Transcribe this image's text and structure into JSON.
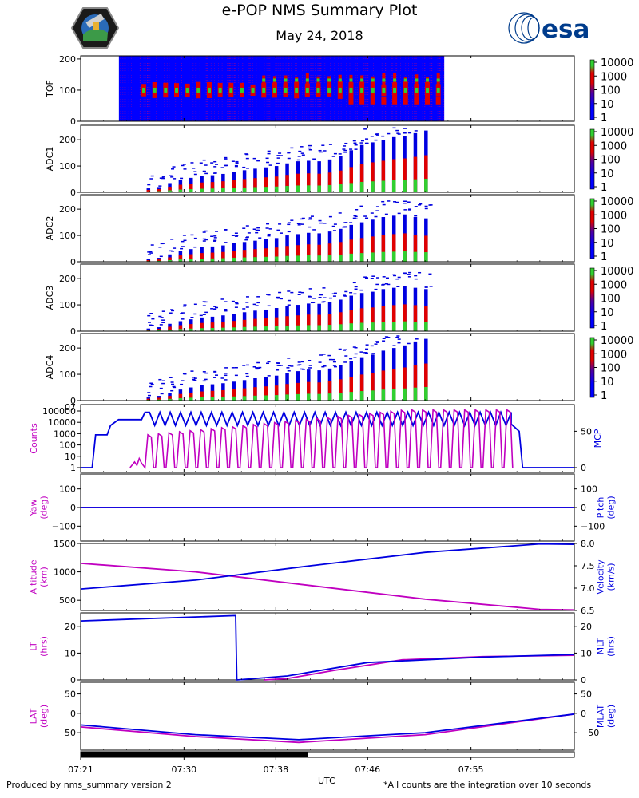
{
  "header": {
    "title": "e-POP NMS Summary Plot",
    "date": "May 24, 2018",
    "esa_logo_text": "esa"
  },
  "footer": {
    "left": "Produced by nms_summary version 2",
    "right": "*All counts are the integration over 10 seconds",
    "xlabel": "UTC"
  },
  "colors": {
    "magenta": "#c000c0",
    "blue": "#0000e0",
    "spec_bg": "#0000ff",
    "spec_red": "#e00000",
    "spec_green": "#30d030",
    "esa_blue": "#003c8c"
  },
  "icons": {
    "left_logo": "epop-satellite-badge-icon",
    "right_logo": "esa-logo-icon"
  },
  "chart_data": [
    {
      "type": "heatmap",
      "name": "tof",
      "ylabel": "TOF",
      "ylim": [
        0,
        210
      ],
      "yticks": [
        0,
        100,
        200
      ],
      "colorbar": {
        "scale": "log",
        "ticks": [
          "10000",
          "1000",
          "100",
          "10",
          "1"
        ]
      },
      "data_start": "07:24:20",
      "data_end": "07:52:40",
      "notes": "Saturated background with bright peaks near TOF 100 and 130-140"
    },
    {
      "type": "heatmap",
      "name": "adc1",
      "ylabel": "ADC1",
      "ylim": [
        0,
        255
      ],
      "yticks": [
        0,
        100,
        200
      ],
      "colorbar": {
        "scale": "log",
        "ticks": [
          "10000",
          "1000",
          "100",
          "10",
          "1"
        ]
      },
      "burst_peaks": [
        15,
        20,
        35,
        48,
        55,
        62,
        65,
        70,
        78,
        84,
        90,
        95,
        100,
        110,
        118,
        120,
        118,
        125,
        138,
        160,
        180,
        190,
        200,
        210,
        215,
        225,
        235
      ]
    },
    {
      "type": "heatmap",
      "name": "adc2",
      "ylabel": "ADC2",
      "ylim": [
        0,
        255
      ],
      "yticks": [
        0,
        100,
        200
      ],
      "colorbar": {
        "scale": "log",
        "ticks": [
          "10000",
          "1000",
          "100",
          "10",
          "1"
        ]
      },
      "burst_peaks": [
        10,
        15,
        28,
        40,
        48,
        55,
        58,
        62,
        70,
        75,
        80,
        85,
        90,
        100,
        105,
        110,
        108,
        115,
        125,
        140,
        150,
        160,
        170,
        175,
        180,
        170,
        165
      ]
    },
    {
      "type": "heatmap",
      "name": "adc3",
      "ylabel": "ADC3",
      "ylim": [
        0,
        255
      ],
      "yticks": [
        0,
        100,
        200
      ],
      "colorbar": {
        "scale": "log",
        "ticks": [
          "10000",
          "1000",
          "100",
          "10",
          "1"
        ]
      },
      "burst_peaks": [
        10,
        15,
        28,
        38,
        45,
        52,
        55,
        60,
        65,
        72,
        78,
        82,
        88,
        95,
        100,
        105,
        104,
        110,
        120,
        135,
        145,
        150,
        160,
        165,
        170,
        165,
        160
      ]
    },
    {
      "type": "heatmap",
      "name": "adc4",
      "ylabel": "ADC4",
      "ylim": [
        0,
        255
      ],
      "yticks": [
        0,
        100,
        200
      ],
      "colorbar": {
        "scale": "log",
        "ticks": [
          "10000",
          "1000",
          "100",
          "10",
          "1"
        ]
      },
      "burst_peaks": [
        12,
        18,
        30,
        42,
        50,
        58,
        62,
        66,
        72,
        78,
        85,
        90,
        95,
        105,
        112,
        118,
        115,
        122,
        135,
        150,
        165,
        175,
        190,
        200,
        210,
        225,
        235
      ]
    },
    {
      "type": "line",
      "name": "counts_mcp",
      "ylabel_left": "Counts",
      "ylabel_right": "MCP",
      "left_scale": "log",
      "left_ticks": [
        "100000",
        "10000",
        "1000",
        "100",
        "10",
        "1"
      ],
      "right_ticks": [
        "50",
        "0"
      ],
      "right_top_tick": "07",
      "series": [
        {
          "name": "Counts",
          "axis": "left",
          "color": "magenta",
          "notes": "bursts from ~07:26 to 07:52, peaks rising from ~10^3 to ~10^5"
        },
        {
          "name": "MCP",
          "axis": "right",
          "color": "blue",
          "notes": "ramp to ~65 at 07:24, ~75 at 07:26, oscillates 58-75 until 07:52, back to ~0 after 07:53"
        }
      ]
    },
    {
      "type": "line",
      "name": "yaw_pitch",
      "ylabel_left": "Yaw\n(deg)",
      "ylabel_right": "Pitch\n(deg)",
      "ylim": [
        -180,
        180
      ],
      "yticks": [
        "100",
        "0",
        "−100"
      ],
      "series": [
        {
          "name": "Yaw",
          "axis": "left",
          "color": "magenta",
          "value": 0
        },
        {
          "name": "Pitch",
          "axis": "right",
          "color": "blue",
          "value": 0
        }
      ]
    },
    {
      "type": "line",
      "name": "alt_vel",
      "ylabel_left": "Altitude\n(km)",
      "ylabel_right": "Velocity\n(km/s)",
      "left_ylim": [
        320,
        1500
      ],
      "left_ticks": [
        "1500",
        "1000",
        "500"
      ],
      "right_ylim": [
        6.5,
        8.0
      ],
      "right_ticks": [
        "8.0",
        "7.5",
        "7.0",
        "6.5"
      ],
      "series": [
        {
          "name": "Altitude",
          "axis": "left",
          "color": "magenta",
          "x_min": [
            0,
            10,
            20,
            30,
            40,
            43
          ],
          "y": [
            1150,
            1000,
            760,
            520,
            340,
            330
          ]
        },
        {
          "name": "Velocity",
          "axis": "right",
          "color": "blue",
          "x_min": [
            0,
            10,
            20,
            30,
            40,
            43
          ],
          "y": [
            6.98,
            7.18,
            7.5,
            7.8,
            7.99,
            7.98
          ]
        }
      ]
    },
    {
      "type": "line",
      "name": "lt_mlt",
      "ylabel_left": "LT\n(hrs)",
      "ylabel_right": "MLT\n(hrs)",
      "ylim": [
        0,
        25
      ],
      "yticks": [
        "20",
        "10",
        "0"
      ],
      "series": [
        {
          "name": "LT",
          "axis": "left",
          "color": "magenta",
          "x_min": [
            16,
            18,
            22,
            28,
            35,
            43
          ],
          "y": [
            0,
            0.5,
            3.5,
            7.5,
            8.7,
            9.2
          ]
        },
        {
          "name": "MLT",
          "axis": "right",
          "color": "blue",
          "x_min": [
            0,
            13.5,
            13.6,
            18,
            25,
            35,
            43
          ],
          "y": [
            22,
            24,
            0,
            1.5,
            6.5,
            8.5,
            9.5
          ]
        }
      ]
    },
    {
      "type": "line",
      "name": "lat_mlat",
      "ylabel_left": "LAT\n(deg)",
      "ylabel_right": "MLAT\n(deg)",
      "ylim": [
        -95,
        80
      ],
      "yticks": [
        "50",
        "0",
        "−50"
      ],
      "series": [
        {
          "name": "LAT",
          "axis": "left",
          "color": "magenta",
          "x_min": [
            0,
            10,
            19,
            30,
            43
          ],
          "y": [
            -35,
            -60,
            -75,
            -55,
            -2
          ]
        },
        {
          "name": "MLAT",
          "axis": "right",
          "color": "blue",
          "x_min": [
            0,
            10,
            19,
            30,
            43
          ],
          "y": [
            -30,
            -55,
            -68,
            -50,
            -2
          ]
        }
      ]
    }
  ],
  "time_axis": {
    "start": "07:21",
    "end": "08:04",
    "ticks": [
      "07:21",
      "07:30",
      "07:38",
      "07:46",
      "07:55"
    ],
    "tick_minutes": [
      0,
      9,
      17,
      25,
      34
    ],
    "coverage_bar_fraction": 0.46
  }
}
